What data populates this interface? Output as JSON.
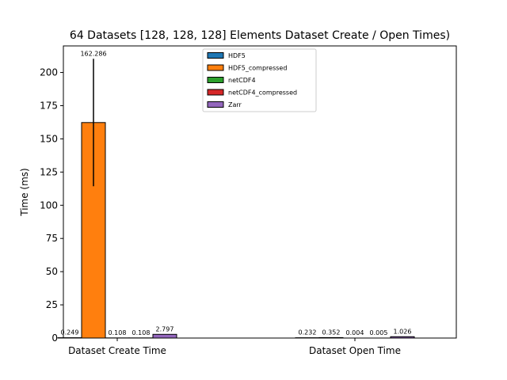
{
  "chart_data": {
    "type": "bar",
    "title": "64 Datasets [128, 128, 128] Elements Dataset Create / Open Times)",
    "xlabel": "",
    "ylabel": "Time (ms)",
    "ylim": [
      0,
      220
    ],
    "yticks": [
      0,
      25,
      50,
      75,
      100,
      125,
      150,
      175,
      200
    ],
    "categories": [
      "Dataset Create Time",
      "Dataset Open Time"
    ],
    "series": [
      {
        "name": "HDF5",
        "color": "#1f77b4",
        "values": [
          0.249,
          0.232
        ],
        "labels": [
          "0.249",
          "0.232"
        ],
        "errors": [
          0,
          0
        ]
      },
      {
        "name": "HDF5_compressed",
        "color": "#ff7f0e",
        "values": [
          162.286,
          0.352
        ],
        "labels": [
          "162.286",
          "0.352"
        ],
        "errors": [
          48,
          0
        ]
      },
      {
        "name": "netCDF4",
        "color": "#2ca02c",
        "values": [
          0.108,
          0.004
        ],
        "labels": [
          "0.108",
          "0.004"
        ],
        "errors": [
          0,
          0
        ]
      },
      {
        "name": "netCDF4_compressed",
        "color": "#d62728",
        "values": [
          0.108,
          0.005
        ],
        "labels": [
          "0.108",
          "0.005"
        ],
        "errors": [
          0,
          0
        ]
      },
      {
        "name": "Zarr",
        "color": "#9467bd",
        "values": [
          2.797,
          1.026
        ],
        "labels": [
          "2.797",
          "1.026"
        ],
        "errors": [
          0,
          0
        ]
      }
    ],
    "legend": "top-center",
    "grid": false
  }
}
